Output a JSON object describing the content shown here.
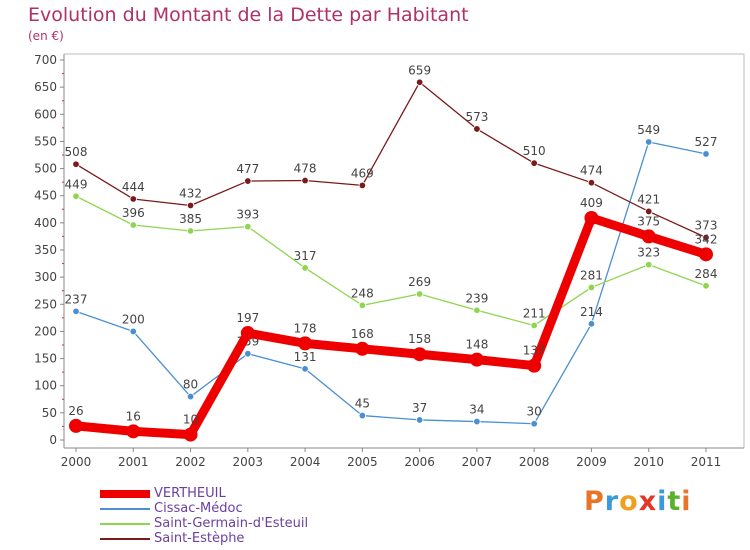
{
  "header": {
    "title": "Evolution du Montant de la Dette par Habitant",
    "unit": "(en €)"
  },
  "logo": {
    "text": "Proxiti",
    "colors": [
      "#e8742a",
      "#3a9ad9",
      "#f0a020",
      "#e2382a",
      "#3a9ad9",
      "#5cb030",
      "#e8742a"
    ]
  },
  "chart_data": {
    "type": "line",
    "x": [
      "2000",
      "2001",
      "2002",
      "2003",
      "2004",
      "2005",
      "2006",
      "2007",
      "2008",
      "2009",
      "2010",
      "2011"
    ],
    "ylim": [
      0,
      700
    ],
    "yticks": [
      0,
      50,
      100,
      150,
      200,
      250,
      300,
      350,
      400,
      450,
      500,
      550,
      600,
      650,
      700
    ],
    "grid": false,
    "legend": "bottom-left",
    "series": [
      {
        "name": "VERTHEUIL",
        "color": "#ee0000",
        "values": [
          26,
          16,
          10,
          197,
          178,
          168,
          158,
          148,
          137,
          409,
          375,
          342
        ],
        "labels": [
          "26",
          "16",
          "10",
          "197",
          "178",
          "168",
          "158",
          "148",
          "137",
          "409",
          "375",
          "342"
        ]
      },
      {
        "name": "Cissac-Médoc",
        "color": "#4a8fd0",
        "values": [
          237,
          200,
          80,
          159,
          131,
          45,
          37,
          34,
          30,
          214,
          549,
          527
        ],
        "labels": [
          "237",
          "200",
          "80",
          "159",
          "131",
          "45",
          "37",
          "34",
          "30",
          "214",
          "549",
          "527"
        ]
      },
      {
        "name": "Saint-Germain-d'Esteuil",
        "color": "#8ed650",
        "values": [
          449,
          396,
          385,
          393,
          317,
          248,
          269,
          239,
          211,
          281,
          323,
          284
        ],
        "labels": [
          "449",
          "396",
          "385",
          "393",
          "317",
          "248",
          "269",
          "239",
          "211",
          "281",
          "323",
          "284"
        ]
      },
      {
        "name": "Saint-Estèphe",
        "color": "#7a1a1a",
        "values": [
          508,
          444,
          432,
          477,
          478,
          469,
          659,
          573,
          510,
          474,
          421,
          373
        ],
        "labels": [
          "508",
          "444",
          "432",
          "477",
          "478",
          "469",
          "659",
          "573",
          "510",
          "474",
          "421",
          "373"
        ]
      }
    ]
  }
}
